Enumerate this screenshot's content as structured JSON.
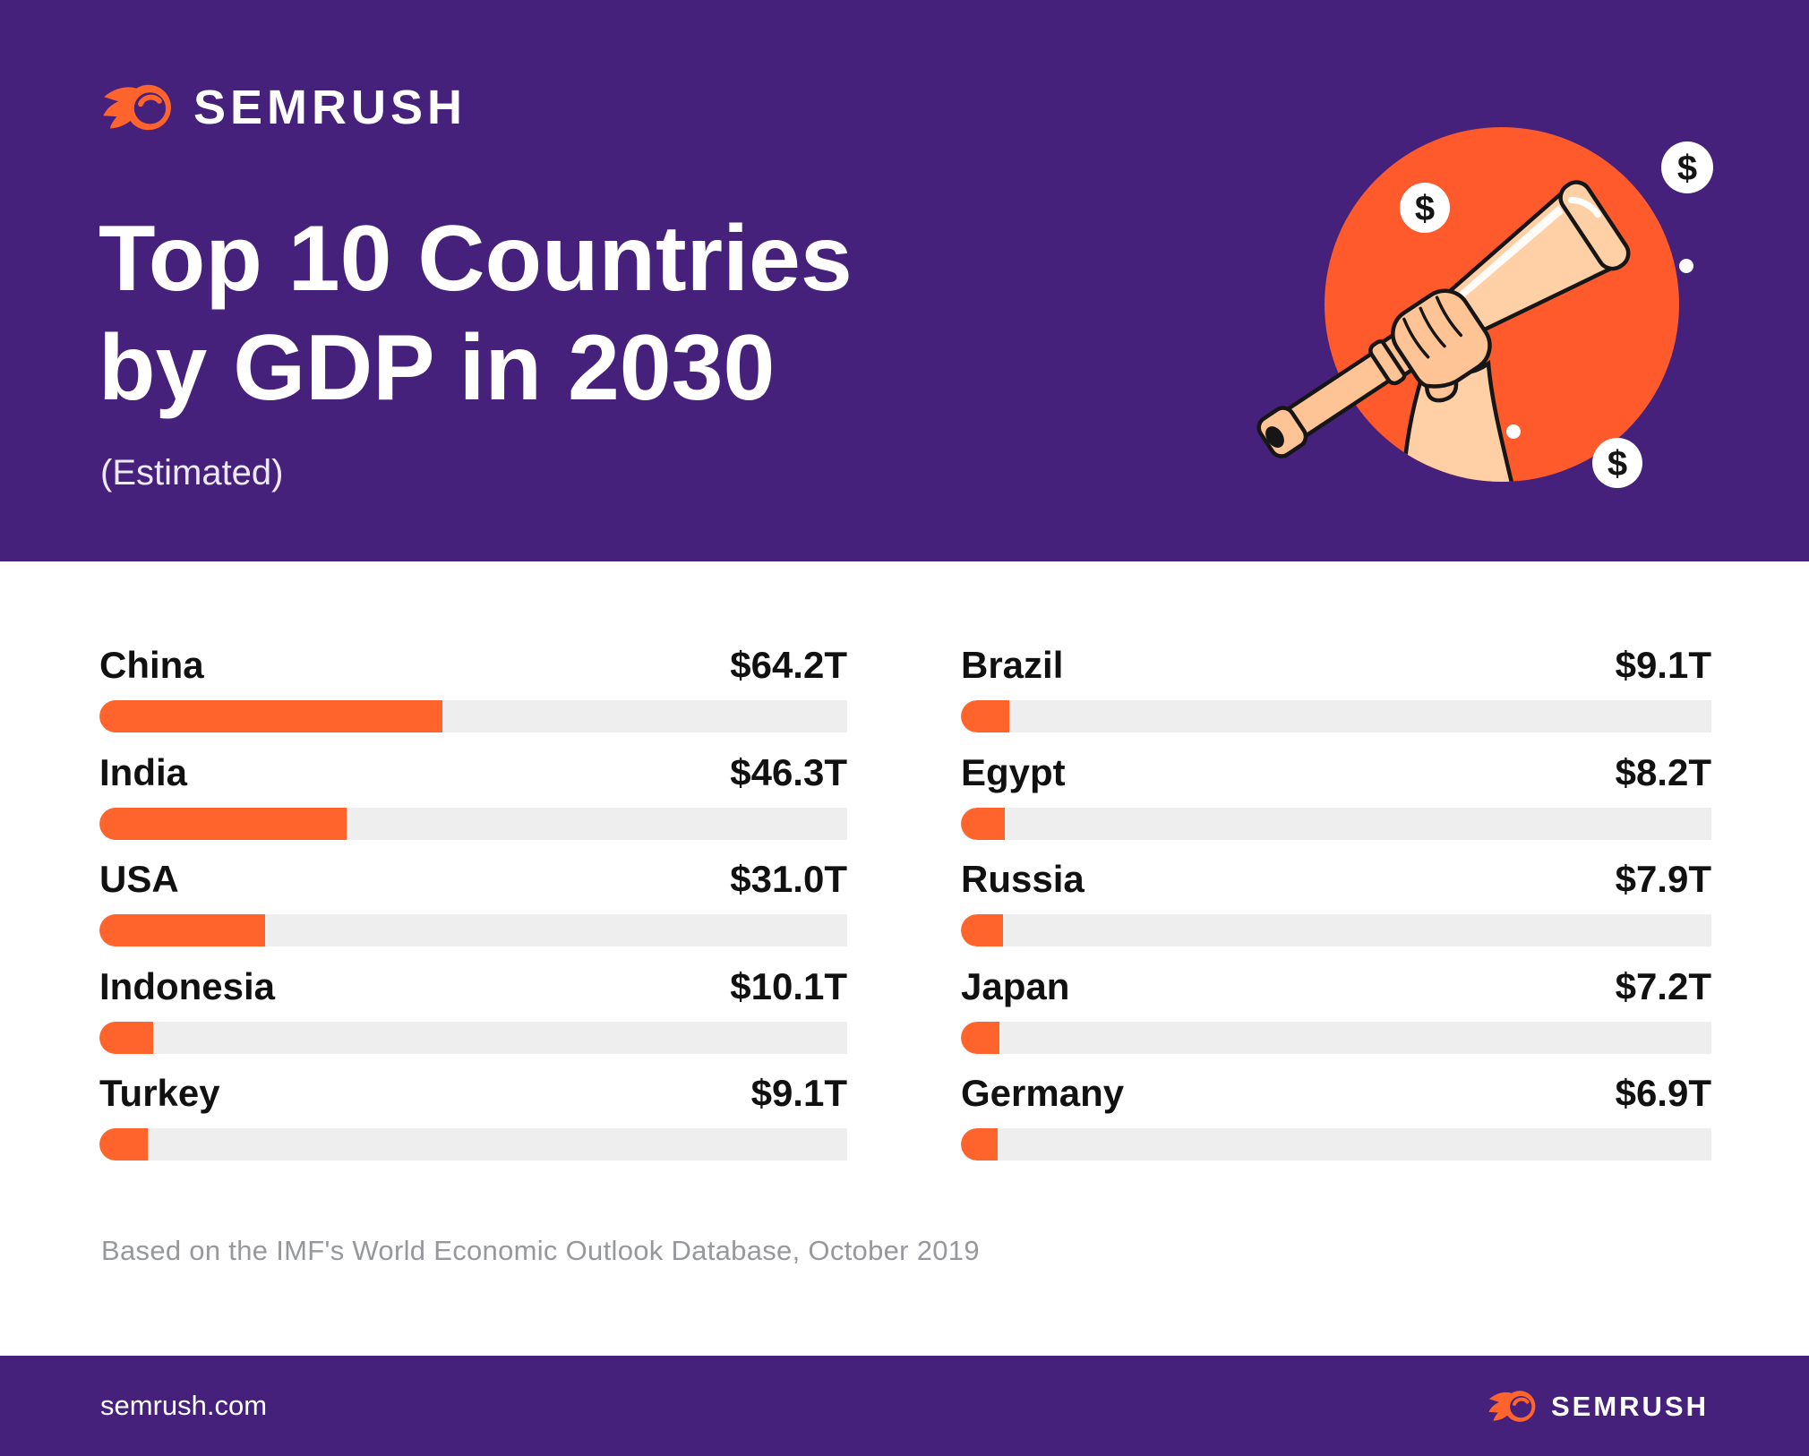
{
  "theme": {
    "purple": "#45217C",
    "orange": "#FF642D",
    "circle_orange": "#FF5A2B",
    "track_gray": "#EEEEEE",
    "text_dark": "#111111",
    "footnote_gray": "#97989C",
    "peach": "#FFC495",
    "peach_light": "#FFCFA6",
    "white": "#FFFFFF"
  },
  "header": {
    "brand": "SEMRUSH",
    "title_line1": "Top 10 Countries",
    "title_line2": "by GDP in 2030",
    "subtitle": "(Estimated)"
  },
  "illustration": {
    "name": "hand-holding-telescope-in-orange-circle",
    "dollar_symbol": "$"
  },
  "chart_data": {
    "type": "bar",
    "orientation": "horizontal",
    "title": "Top 10 Countries by GDP in 2030 (Estimated)",
    "unit": "trillion USD",
    "xlim": [
      0,
      140
    ],
    "grid": false,
    "legend": "none",
    "bar_color": "#FF642D",
    "track_color": "#EEEEEE",
    "rows": [
      {
        "country": "China",
        "value": 64.2,
        "label": "$64.2T"
      },
      {
        "country": "India",
        "value": 46.3,
        "label": "$46.3T"
      },
      {
        "country": "USA",
        "value": 31.0,
        "label": "$31.0T"
      },
      {
        "country": "Indonesia",
        "value": 10.1,
        "label": "$10.1T"
      },
      {
        "country": "Turkey",
        "value": 9.1,
        "label": "$9.1T"
      },
      {
        "country": "Brazil",
        "value": 9.1,
        "label": "$9.1T"
      },
      {
        "country": "Egypt",
        "value": 8.2,
        "label": "$8.2T"
      },
      {
        "country": "Russia",
        "value": 7.9,
        "label": "$7.9T"
      },
      {
        "country": "Japan",
        "value": 7.2,
        "label": "$7.2T"
      },
      {
        "country": "Germany",
        "value": 6.9,
        "label": "$6.9T"
      }
    ],
    "columns": {
      "left": [
        0,
        1,
        2,
        3,
        4
      ],
      "right": [
        5,
        6,
        7,
        8,
        9
      ]
    }
  },
  "footnote": "Based on the IMF's World Economic Outlook Database, October 2019",
  "footer": {
    "site": "semrush.com",
    "brand": "SEMRUSH"
  }
}
